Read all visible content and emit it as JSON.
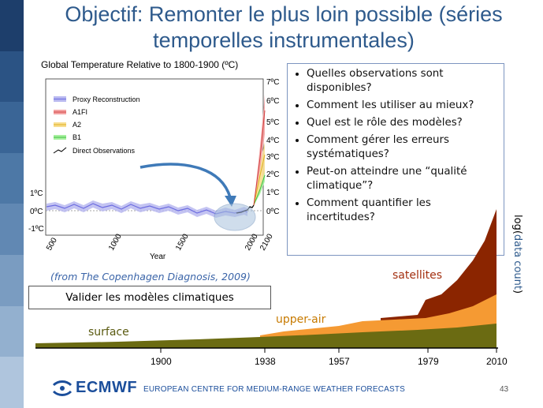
{
  "slide": {
    "title_line1": "Objectif: Remonter le plus loin possible (séries",
    "title_line2": "temporelles instrumentales)",
    "page_number": "43"
  },
  "temperature_chart": {
    "title": "Global Temperature Relative to 1800-1900 (ºC)",
    "legend": [
      "Proxy Reconstruction",
      "A1FI",
      "A2",
      "B1",
      "Direct Observations"
    ],
    "x_ticks": [
      "500",
      "1000",
      "1500",
      "2000",
      "2100"
    ],
    "x_label": "Year",
    "y_left_ticks": [
      "1ºC",
      "0ºC",
      "-1ºC"
    ],
    "y_right_ticks": [
      "7ºC",
      "6ºC",
      "5ºC",
      "4ºC",
      "3ºC",
      "2ºC",
      "1ºC",
      "0ºC"
    ],
    "colors": {
      "proxy": "#8080e0",
      "a1fi": "#e05050",
      "a2": "#f0c030",
      "b1": "#50d050",
      "obs": "#000000"
    }
  },
  "citation": "(from The Copenhagen Diagnosis, 2009)",
  "validate_box": "Valider les modèles climatiques",
  "questions": [
    "Quelles observations sont disponibles?",
    "Comment les utiliser au mieux?",
    "Quel est le rôle des modèles?",
    "Comment gérer les erreurs systématiques?",
    "Peut-on atteindre une “qualité climatique”?",
    "Comment quantifier les incertitudes?"
  ],
  "growth_chart": {
    "ylabel_part1": "log(",
    "ylabel_part2": "data count",
    "ylabel_part3": ")",
    "layers": [
      {
        "name": "surface",
        "color": "#6b6b12"
      },
      {
        "name": "upper-air",
        "color": "#f59a33"
      },
      {
        "name": "satellites",
        "color": "#8b2500"
      }
    ],
    "years": [
      "1900",
      "1938",
      "1957",
      "1979",
      "2010"
    ]
  },
  "footer": {
    "logo_text": "ECMWF",
    "org_name": "EUROPEAN CENTRE FOR MEDIUM-RANGE WEATHER FORECASTS"
  }
}
